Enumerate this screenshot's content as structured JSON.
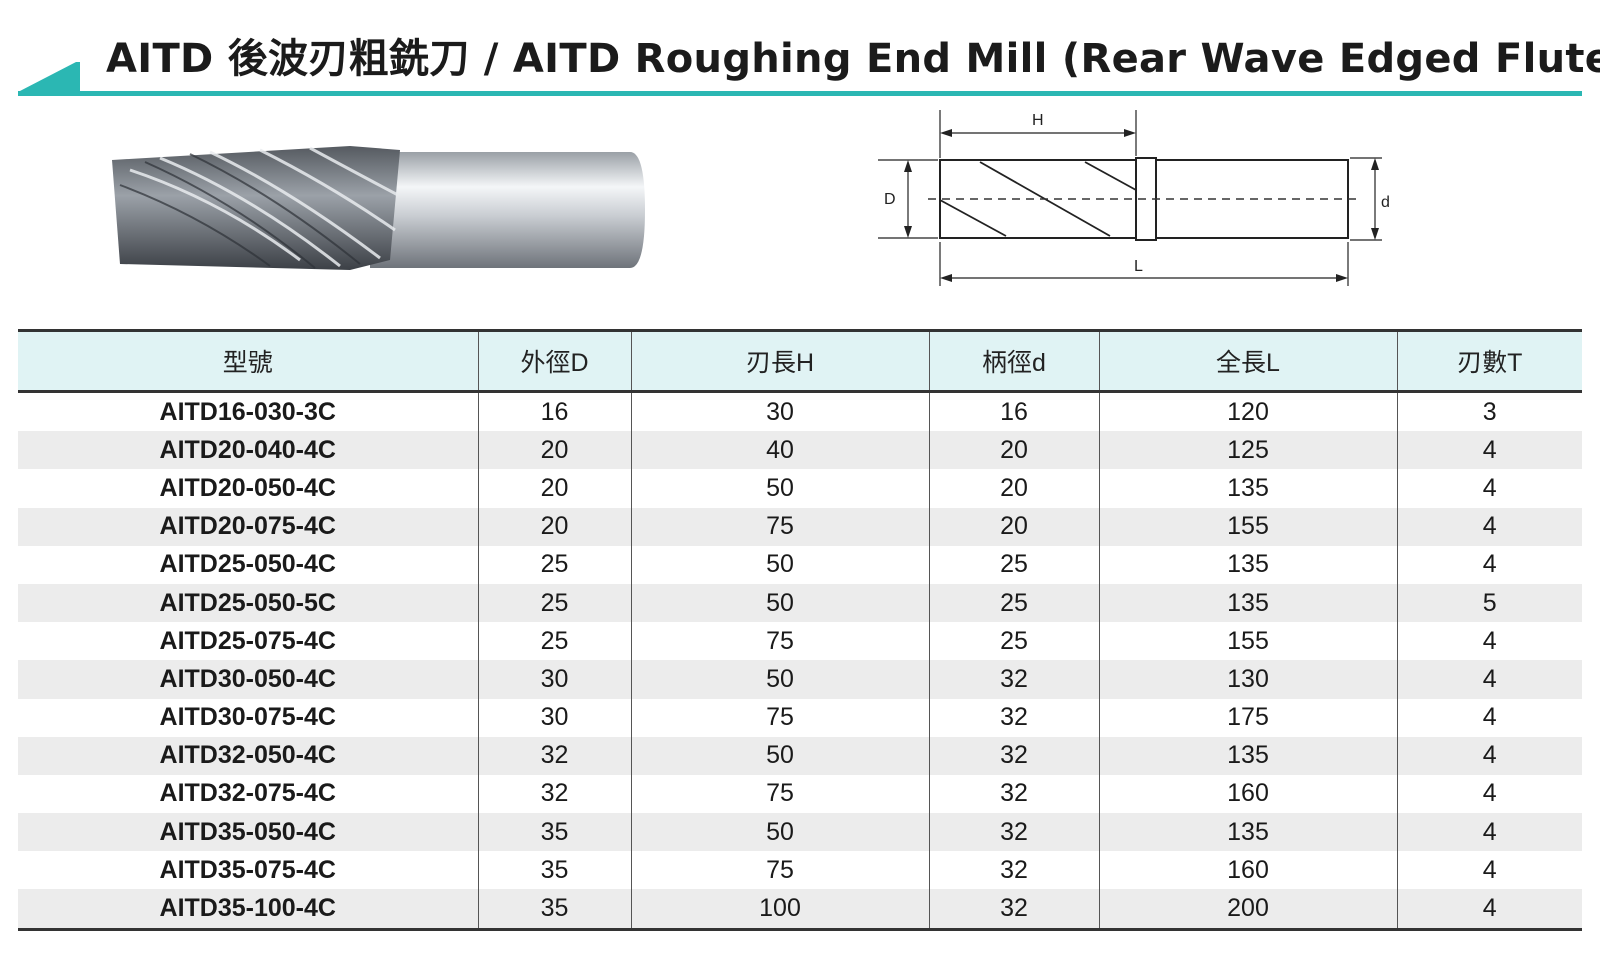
{
  "header": {
    "title": "AITD  後波刃粗銑刀 / AITD Roughing End Mill  (Rear Wave Edged Flute)"
  },
  "diagram": {
    "label_H": "H",
    "label_D": "D",
    "label_d": "d",
    "label_L": "L"
  },
  "table": {
    "headers": [
      "型號",
      "外徑D",
      "刃長H",
      "柄徑d",
      "全長L",
      "刃數T"
    ],
    "rows": [
      [
        "AITD16-030-3C",
        "16",
        "30",
        "16",
        "120",
        "3"
      ],
      [
        "AITD20-040-4C",
        "20",
        "40",
        "20",
        "125",
        "4"
      ],
      [
        "AITD20-050-4C",
        "20",
        "50",
        "20",
        "135",
        "4"
      ],
      [
        "AITD20-075-4C",
        "20",
        "75",
        "20",
        "155",
        "4"
      ],
      [
        "AITD25-050-4C",
        "25",
        "50",
        "25",
        "135",
        "4"
      ],
      [
        "AITD25-050-5C",
        "25",
        "50",
        "25",
        "135",
        "5"
      ],
      [
        "AITD25-075-4C",
        "25",
        "75",
        "25",
        "155",
        "4"
      ],
      [
        "AITD30-050-4C",
        "30",
        "50",
        "32",
        "130",
        "4"
      ],
      [
        "AITD30-075-4C",
        "30",
        "75",
        "32",
        "175",
        "4"
      ],
      [
        "AITD32-050-4C",
        "32",
        "50",
        "32",
        "135",
        "4"
      ],
      [
        "AITD32-075-4C",
        "32",
        "75",
        "32",
        "160",
        "4"
      ],
      [
        "AITD35-050-4C",
        "35",
        "50",
        "32",
        "135",
        "4"
      ],
      [
        "AITD35-075-4C",
        "35",
        "75",
        "32",
        "160",
        "4"
      ],
      [
        "AITD35-100-4C",
        "35",
        "100",
        "32",
        "200",
        "4"
      ]
    ]
  },
  "colors": {
    "accent_teal": "#2bb7b3",
    "header_bg": "#e0f3f4",
    "alt_row_bg": "#ececec"
  }
}
